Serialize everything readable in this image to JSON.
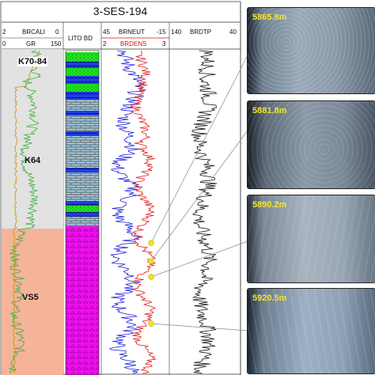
{
  "figure": {
    "title": "3-SES-194",
    "tracks": {
      "track1": {
        "curve1": {
          "name": "BRCALI",
          "min": "2",
          "max": "0"
        },
        "curve2": {
          "name": "GR",
          "min": "0",
          "max": "150"
        }
      },
      "litho": {
        "name": "LITO BD"
      },
      "track3": {
        "curve1": {
          "name": "BRNEUT",
          "min": "45",
          "max": "-15"
        },
        "curve2": {
          "name": "BRDENS",
          "min": "2",
          "max": "3"
        }
      },
      "track4": {
        "curve1": {
          "name": "BRDTP",
          "min": "140",
          "max": "40"
        }
      }
    },
    "zones": [
      "K70-84",
      "K64",
      "VS5"
    ],
    "colors": {
      "zone_k": "#e2e2e2",
      "zone_vs5": "#f5b49a",
      "gr_curve": "#3cae3c",
      "caliper_curve": "#c8960c",
      "neutron_curve": "#1a1ad8",
      "density_curve": "#e01a1a",
      "sonic_curve": "#111111",
      "marker": "#f4e21c",
      "depth_text": "#f5e52a"
    },
    "cores": [
      {
        "depth": "5865.8m"
      },
      {
        "depth": "5881.8m"
      },
      {
        "depth": "5890.2m"
      },
      {
        "depth": "5920.5m"
      }
    ]
  }
}
